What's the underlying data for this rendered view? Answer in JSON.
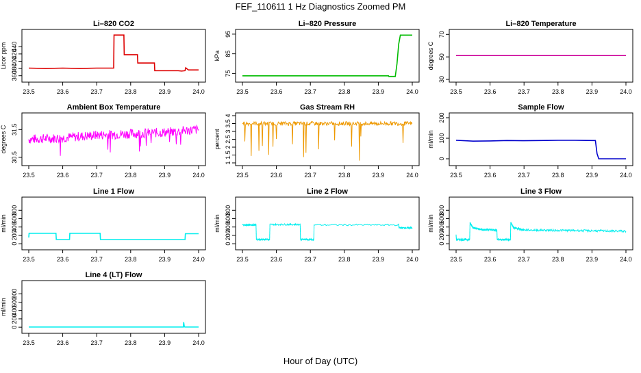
{
  "figure": {
    "title": "FEF_110611  1 Hz Diagnostics Zoomed PM",
    "xlabel": "Hour of Day (UTC)"
  },
  "chart_data": [
    {
      "type": "line",
      "title": "Li–820 CO2",
      "ylabel": "Licor ppm",
      "color": "#dd0000",
      "xlim": [
        23.5,
        24.0
      ],
      "ylim": [
        350,
        480
      ],
      "yticks": [
        360,
        380,
        400,
        420,
        440
      ],
      "xticks": [
        23.5,
        23.6,
        23.7,
        23.8,
        23.9,
        24.0
      ],
      "series": [
        {
          "x": [
            23.5,
            23.55,
            23.6,
            23.65,
            23.7,
            23.745,
            23.75,
            23.751,
            23.78,
            23.781,
            23.82,
            23.821,
            23.87,
            23.871,
            23.94,
            23.95,
            23.96,
            23.962,
            23.97,
            24.0
          ],
          "y": [
            381,
            380,
            381,
            380,
            381,
            381,
            381,
            472,
            472,
            418,
            418,
            395,
            395,
            374,
            374,
            373,
            374,
            382,
            376,
            376
          ]
        }
      ]
    },
    {
      "type": "line",
      "title": "Li–820 Pressure",
      "ylabel": "kPa",
      "color": "#00bb00",
      "xlim": [
        23.5,
        24.0
      ],
      "ylim": [
        72,
        96
      ],
      "yticks": [
        75,
        85,
        95
      ],
      "xticks": [
        23.5,
        23.6,
        23.7,
        23.8,
        23.9,
        24.0
      ],
      "series": [
        {
          "x": [
            23.5,
            23.6,
            23.7,
            23.8,
            23.9,
            23.93,
            23.931,
            23.95,
            23.955,
            23.96,
            23.965,
            23.97,
            24.0
          ],
          "y": [
            73.8,
            73.8,
            73.8,
            73.8,
            73.8,
            73.8,
            73.5,
            73.5,
            80,
            90,
            94.5,
            94.5,
            94.5
          ]
        }
      ]
    },
    {
      "type": "line",
      "title": "Li–820 Temperature",
      "ylabel": "degrees C",
      "color": "#cc0099",
      "xlim": [
        23.5,
        24.0
      ],
      "ylim": [
        30,
        72
      ],
      "yticks": [
        30,
        50,
        70
      ],
      "xticks": [
        23.5,
        23.6,
        23.7,
        23.8,
        23.9,
        24.0
      ],
      "series": [
        {
          "x": [
            23.5,
            24.0
          ],
          "y": [
            51.2,
            51.2
          ]
        }
      ]
    },
    {
      "type": "line",
      "title": "Ambient Box Temperature",
      "ylabel": "degrees C",
      "color": "#ff00ff",
      "xlim": [
        23.5,
        24.0
      ],
      "ylim": [
        30.3,
        32.0
      ],
      "yticks": [
        30.5,
        31.5
      ],
      "xticks": [
        23.5,
        23.6,
        23.7,
        23.8,
        23.9,
        24.0
      ],
      "series": [
        {
          "x": [
            23.5,
            23.6,
            23.7,
            23.8,
            23.9,
            24.0
          ],
          "y": [
            31.15,
            31.2,
            31.3,
            31.35,
            31.4,
            31.5
          ]
        }
      ]
    },
    {
      "type": "line",
      "title": "Gas Stream RH",
      "ylabel": "percent",
      "color": "#ee9900",
      "xlim": [
        23.5,
        24.0
      ],
      "ylim": [
        1.0,
        4.0
      ],
      "yticks": [
        1.0,
        1.5,
        2.0,
        2.5,
        3.0,
        3.5,
        4.0
      ],
      "xticks": [
        23.5,
        23.6,
        23.7,
        23.8,
        23.9,
        24.0
      ],
      "series": [
        {
          "x": [
            23.5,
            23.6,
            23.7,
            23.8,
            23.9,
            24.0
          ],
          "y": [
            3.5,
            3.5,
            3.5,
            3.5,
            3.5,
            3.5
          ]
        }
      ]
    },
    {
      "type": "line",
      "title": "Sample Flow",
      "ylabel": "ml/min",
      "color": "#0000cc",
      "xlim": [
        23.5,
        24.0
      ],
      "ylim": [
        -20,
        210
      ],
      "yticks": [
        0,
        100,
        200
      ],
      "xticks": [
        23.5,
        23.6,
        23.7,
        23.8,
        23.9,
        24.0
      ],
      "series": [
        {
          "x": [
            23.5,
            23.55,
            23.6,
            23.65,
            23.7,
            23.75,
            23.8,
            23.85,
            23.9,
            23.91,
            23.915,
            23.92,
            24.0
          ],
          "y": [
            90,
            86,
            87,
            89,
            88,
            89,
            90,
            90,
            89,
            89,
            25,
            0,
            0
          ]
        }
      ]
    },
    {
      "type": "line",
      "title": "Line 1 Flow",
      "ylabel": "ml/min",
      "color": "#00eeee",
      "xlim": [
        23.5,
        24.0
      ],
      "ylim": [
        -80,
        1050
      ],
      "yticks": [
        0,
        200,
        400,
        600,
        800
      ],
      "xticks": [
        23.5,
        23.6,
        23.7,
        23.8,
        23.9,
        24.0
      ],
      "series": [
        {
          "x": [
            23.5,
            23.501,
            23.58,
            23.581,
            23.62,
            23.621,
            23.71,
            23.711,
            23.96,
            23.961,
            24.0
          ],
          "y": [
            150,
            250,
            250,
            100,
            100,
            250,
            250,
            100,
            100,
            240,
            240
          ]
        }
      ]
    },
    {
      "type": "line",
      "title": "Line 2 Flow",
      "ylabel": "ml/min",
      "color": "#00eeee",
      "xlim": [
        23.5,
        24.0
      ],
      "ylim": [
        -80,
        1050
      ],
      "yticks": [
        0,
        200,
        400,
        600,
        800
      ],
      "xticks": [
        23.5,
        23.6,
        23.7,
        23.8,
        23.9,
        24.0
      ],
      "series": [
        {
          "x": [
            23.5,
            23.54,
            23.541,
            23.58,
            23.581,
            23.67,
            23.671,
            23.71,
            23.711,
            23.96,
            23.961,
            24.0
          ],
          "y": [
            450,
            450,
            100,
            100,
            460,
            460,
            100,
            100,
            450,
            450,
            380,
            380
          ]
        }
      ]
    },
    {
      "type": "line",
      "title": "Line 3 Flow",
      "ylabel": "ml/min",
      "color": "#00eeee",
      "xlim": [
        23.5,
        24.0
      ],
      "ylim": [
        -80,
        1050
      ],
      "yticks": [
        0,
        200,
        400,
        600,
        800
      ],
      "xticks": [
        23.5,
        23.6,
        23.7,
        23.8,
        23.9,
        24.0
      ],
      "series": [
        {
          "x": [
            23.5,
            23.501,
            23.505,
            23.54,
            23.541,
            23.55,
            23.58,
            23.62,
            23.621,
            23.66,
            23.661,
            23.67,
            23.7,
            23.8,
            23.9,
            24.0
          ],
          "y": [
            200,
            100,
            100,
            100,
            500,
            380,
            330,
            330,
            100,
            100,
            500,
            380,
            330,
            320,
            310,
            300
          ]
        }
      ]
    },
    {
      "type": "line",
      "title": "Line 4 (LT) Flow",
      "ylabel": "ml/min",
      "color": "#00eeee",
      "xlim": [
        23.5,
        24.0
      ],
      "ylim": [
        -80,
        1050
      ],
      "yticks": [
        0,
        200,
        400,
        600,
        800
      ],
      "xticks": [
        23.5,
        23.6,
        23.7,
        23.8,
        23.9,
        24.0
      ],
      "series": [
        {
          "x": [
            23.5,
            23.955,
            23.956,
            23.958,
            23.96,
            24.0
          ],
          "y": [
            5,
            5,
            120,
            10,
            5,
            5
          ]
        }
      ]
    }
  ]
}
